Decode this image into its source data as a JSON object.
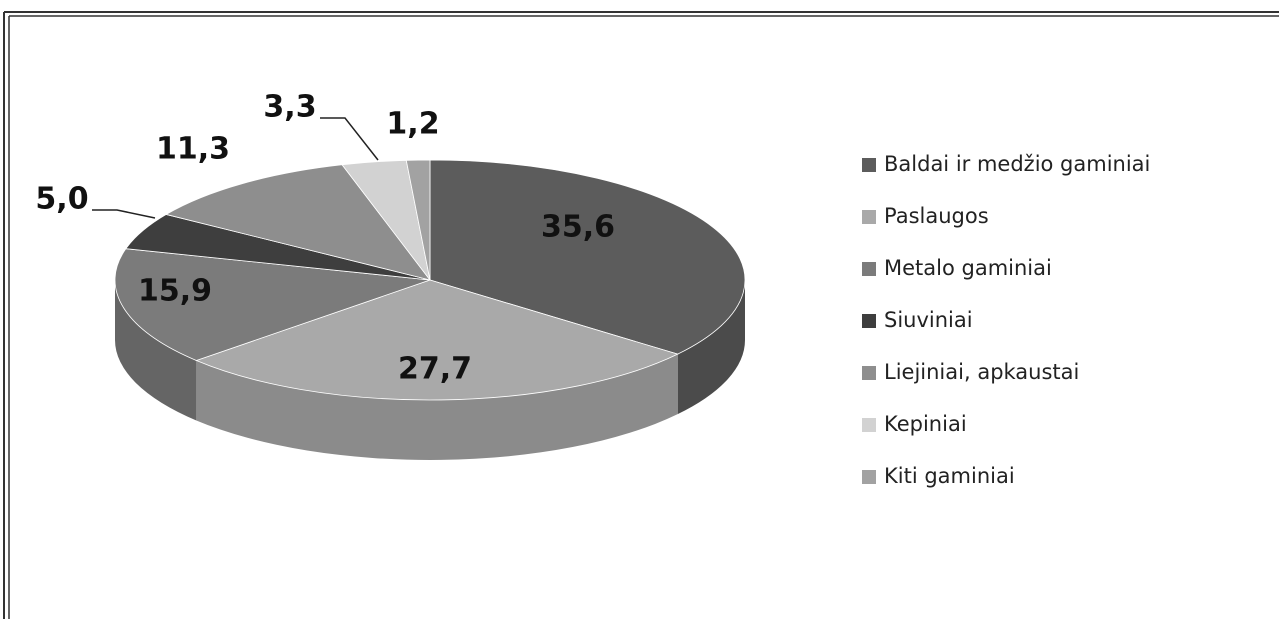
{
  "chart_data": {
    "type": "pie",
    "categories": [
      "Baldai ir medžio gaminiai",
      "Paslaugos",
      "Metalo gaminiai",
      "Siuviniai",
      "Liejiniai, apkaustai",
      "Kepiniai",
      "Kiti gaminiai"
    ],
    "values": [
      35.6,
      27.7,
      15.9,
      5.0,
      11.3,
      3.3,
      1.2
    ],
    "value_labels": [
      "35,6",
      "27,7",
      "15,9",
      "5,0",
      "11,3",
      "3,3",
      "1,2"
    ],
    "colors": [
      "#5c5c5c",
      "#a9a9a9",
      "#7b7b7b",
      "#3e3e3e",
      "#8e8e8e",
      "#d2d2d2",
      "#a2a2a2"
    ],
    "legend": "right"
  }
}
